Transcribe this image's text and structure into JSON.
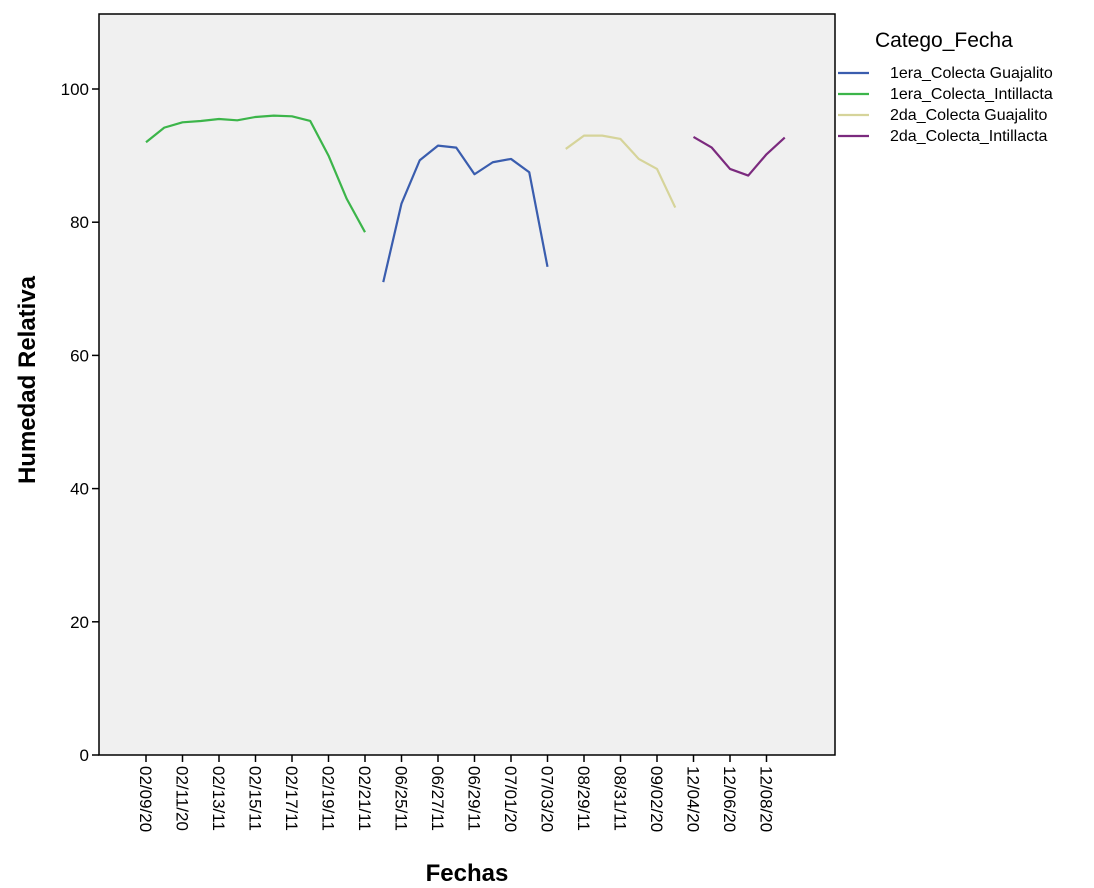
{
  "chart_data": {
    "type": "line",
    "xlabel": "Fechas",
    "ylabel": "Humedad Relativa",
    "ylim": [
      0,
      110
    ],
    "yticks": [
      0,
      20,
      40,
      60,
      80,
      100
    ],
    "plot_background": "#f0f0f0",
    "grid": false,
    "legend_title": "Catego_Fecha",
    "legend_position": "right",
    "x_tick_labels": [
      "02/09/20",
      "02/11/20",
      "02/13/11",
      "02/15/11",
      "02/17/11",
      "02/19/11",
      "02/21/11",
      "06/25/11",
      "06/27/11",
      "06/29/11",
      "07/01/20",
      "07/03/20",
      "08/29/11",
      "08/31/11",
      "09/02/20",
      "12/04/20",
      "12/06/20",
      "12/08/20"
    ],
    "x_count": 36,
    "series": [
      {
        "name": "1era_Colecta_Intillacta",
        "color": "#3cb54a",
        "x_start": 0,
        "values": [
          92.0,
          94.2,
          95.0,
          95.2,
          95.5,
          95.3,
          95.8,
          96.0,
          95.9,
          95.2,
          90.0,
          83.5,
          78.5
        ]
      },
      {
        "name": "1era_Colecta Guajalito",
        "color": "#3a5dae",
        "x_start": 13,
        "values": [
          71.0,
          82.8,
          89.3,
          91.5,
          91.2,
          87.2,
          89.0,
          89.5,
          87.5,
          73.3
        ]
      },
      {
        "name": "2da_Colecta Guajalito",
        "color": "#d6d49a",
        "x_start": 23,
        "values": [
          91.0,
          93.0,
          93.0,
          92.5,
          89.5,
          88.0,
          82.2
        ]
      },
      {
        "name": "2da_Colecta_Intillacta",
        "color": "#7b2a7e",
        "x_start": 30,
        "values": [
          92.8,
          91.2,
          88.0,
          87.0,
          90.2,
          92.7
        ]
      }
    ],
    "legend_order": [
      "1era_Colecta Guajalito",
      "1era_Colecta_Intillacta",
      "2da_Colecta Guajalito",
      "2da_Colecta_Intillacta"
    ]
  }
}
